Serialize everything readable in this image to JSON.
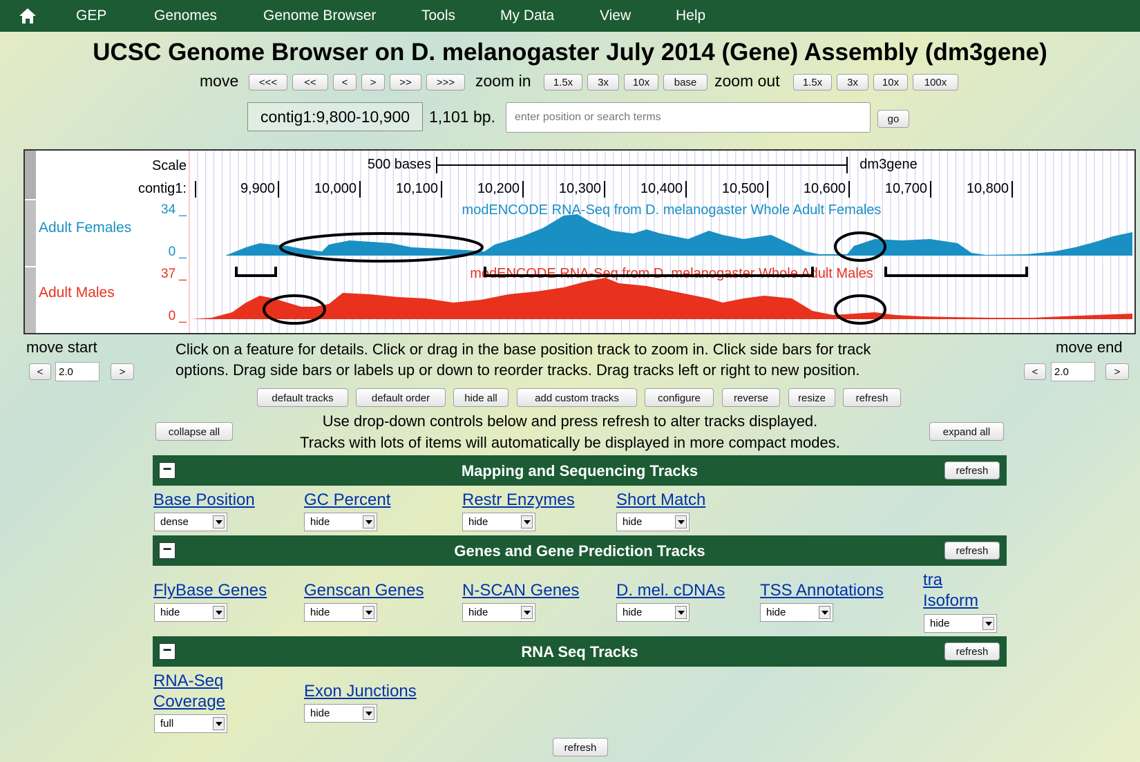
{
  "nav": {
    "items": [
      "GEP",
      "Genomes",
      "Genome Browser",
      "Tools",
      "My Data",
      "View",
      "Help"
    ]
  },
  "title": "UCSC Genome Browser on D. melanogaster July 2014 (Gene) Assembly (dm3gene)",
  "controls": {
    "move_label": "move",
    "move_buttons": [
      "<<<",
      "<<",
      "<",
      ">",
      ">>",
      ">>>"
    ],
    "zoom_in_label": "zoom in",
    "zoom_in_buttons": [
      "1.5x",
      "3x",
      "10x",
      "base"
    ],
    "zoom_out_label": "zoom out",
    "zoom_out_buttons": [
      "1.5x",
      "3x",
      "10x",
      "100x"
    ],
    "position": "contig1:9,800-10,900",
    "size": "1,101 bp.",
    "search_placeholder": "enter position or search terms",
    "go_label": "go"
  },
  "tracks_image": {
    "scale_label": "Scale",
    "scale_text": "500 bases",
    "assembly": "dm3gene",
    "chrom_label": "contig1:",
    "ticks": [
      "9,900",
      "10,000",
      "10,100",
      "10,200",
      "10,300",
      "10,400",
      "10,500",
      "10,600",
      "10,700",
      "10,800"
    ],
    "females": {
      "label": "Adult Females",
      "title": "modENCODE RNA-Seq from D. melanogaster Whole Adult Females",
      "max": "34 _",
      "min": "0 _",
      "color": "#1a8fc4"
    },
    "males": {
      "label": "Adult Males",
      "title": "modENCODE RNA-Seq from D. melanogaster Whole Adult Males",
      "max": "37 _",
      "min": "0 _",
      "color": "#e8321e"
    }
  },
  "move_start": {
    "label": "move start",
    "value": "2.0",
    "left": "<",
    "right": ">"
  },
  "move_end": {
    "label": "move end",
    "value": "2.0",
    "left": "<",
    "right": ">"
  },
  "help_text": {
    "line1": "Click on a feature for details. Click or drag in the base position track to zoom in. Click side bars for track",
    "line2": "options. Drag side bars or labels up or down to reorder tracks. Drag tracks left or right to new position."
  },
  "action_buttons": [
    "default tracks",
    "default order",
    "hide all",
    "add custom tracks",
    "configure",
    "reverse",
    "resize",
    "refresh"
  ],
  "dropdown_text": {
    "line1": "Use drop-down controls below and press refresh to alter tracks displayed.",
    "line2": "Tracks with lots of items will automatically be displayed in more compact modes."
  },
  "collapse_all": "collapse all",
  "expand_all": "expand all",
  "groups": [
    {
      "title": "Mapping and Sequencing Tracks",
      "refresh": "refresh",
      "tracks": [
        {
          "name": "Base Position",
          "mode": "dense"
        },
        {
          "name": "GC Percent",
          "mode": "hide"
        },
        {
          "name": "Restr Enzymes",
          "mode": "hide"
        },
        {
          "name": "Short Match",
          "mode": "hide"
        }
      ]
    },
    {
      "title": "Genes and Gene Prediction Tracks",
      "refresh": "refresh",
      "tracks": [
        {
          "name": "FlyBase Genes",
          "mode": "hide"
        },
        {
          "name": "Genscan Genes",
          "mode": "hide"
        },
        {
          "name": "N-SCAN Genes",
          "mode": "hide"
        },
        {
          "name": "D. mel. cDNAs",
          "mode": "hide"
        },
        {
          "name": "TSS Annotations",
          "mode": "hide"
        },
        {
          "name1": "tra",
          "name2": "Isoform",
          "mode": "hide"
        }
      ]
    },
    {
      "title": "RNA Seq Tracks",
      "refresh": "refresh",
      "tracks": [
        {
          "name1": "RNA-Seq",
          "name2": "Coverage",
          "mode": "full"
        },
        {
          "name": "Exon Junctions",
          "mode": "hide"
        }
      ]
    }
  ],
  "bottom_refresh": "refresh"
}
